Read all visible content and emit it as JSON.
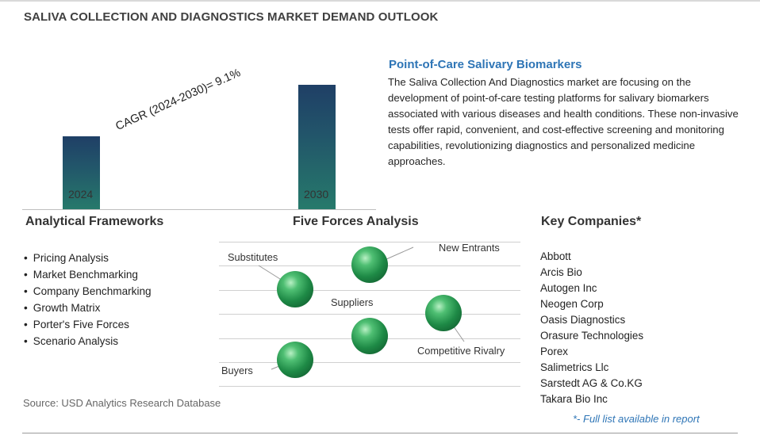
{
  "title": "SALIVA COLLECTION AND DIAGNOSTICS MARKET DEMAND OUTLOOK",
  "chart_data": {
    "type": "bar",
    "categories": [
      "2024",
      "2030"
    ],
    "values": [
      1.0,
      1.69
    ],
    "annotation": "CAGR (2024-2030)=  9.1%",
    "colors": [
      "#1f3f66",
      "#267a6b"
    ]
  },
  "description": {
    "heading": "Point-of-Care Salivary Biomarkers",
    "text": "The Saliva Collection And Diagnostics market are focusing on the development of point-of-care testing platforms for salivary biomarkers associated with various diseases and health conditions. These non-invasive tests offer rapid, convenient, and cost-effective screening and monitoring capabilities, revolutionizing diagnostics and personalized medicine approaches."
  },
  "frameworks": {
    "heading": "Analytical Frameworks",
    "items": [
      "Pricing Analysis",
      "Market Benchmarking",
      "Company Benchmarking",
      "Growth Matrix",
      "Porter's Five Forces",
      "Scenario Analysis"
    ]
  },
  "five_forces": {
    "heading": "Five Forces Analysis",
    "labels": {
      "substitutes": "Substitutes",
      "new_entrants": "New Entrants",
      "suppliers": "Suppliers",
      "competitive_rivalry": "Competitive Rivalry",
      "buyers": "Buyers"
    }
  },
  "companies": {
    "heading": "Key Companies*",
    "items": [
      "Abbott",
      "Arcis Bio",
      "Autogen Inc",
      "Neogen Corp",
      "Oasis Diagnostics",
      "Orasure Technologies",
      "Porex",
      "Salimetrics Llc",
      "Sarstedt AG & Co.KG",
      "Takara Bio Inc"
    ],
    "note": "*- Full list available in report"
  },
  "source": "Source: USD Analytics Research Database",
  "accent_color": "#2e75b6"
}
